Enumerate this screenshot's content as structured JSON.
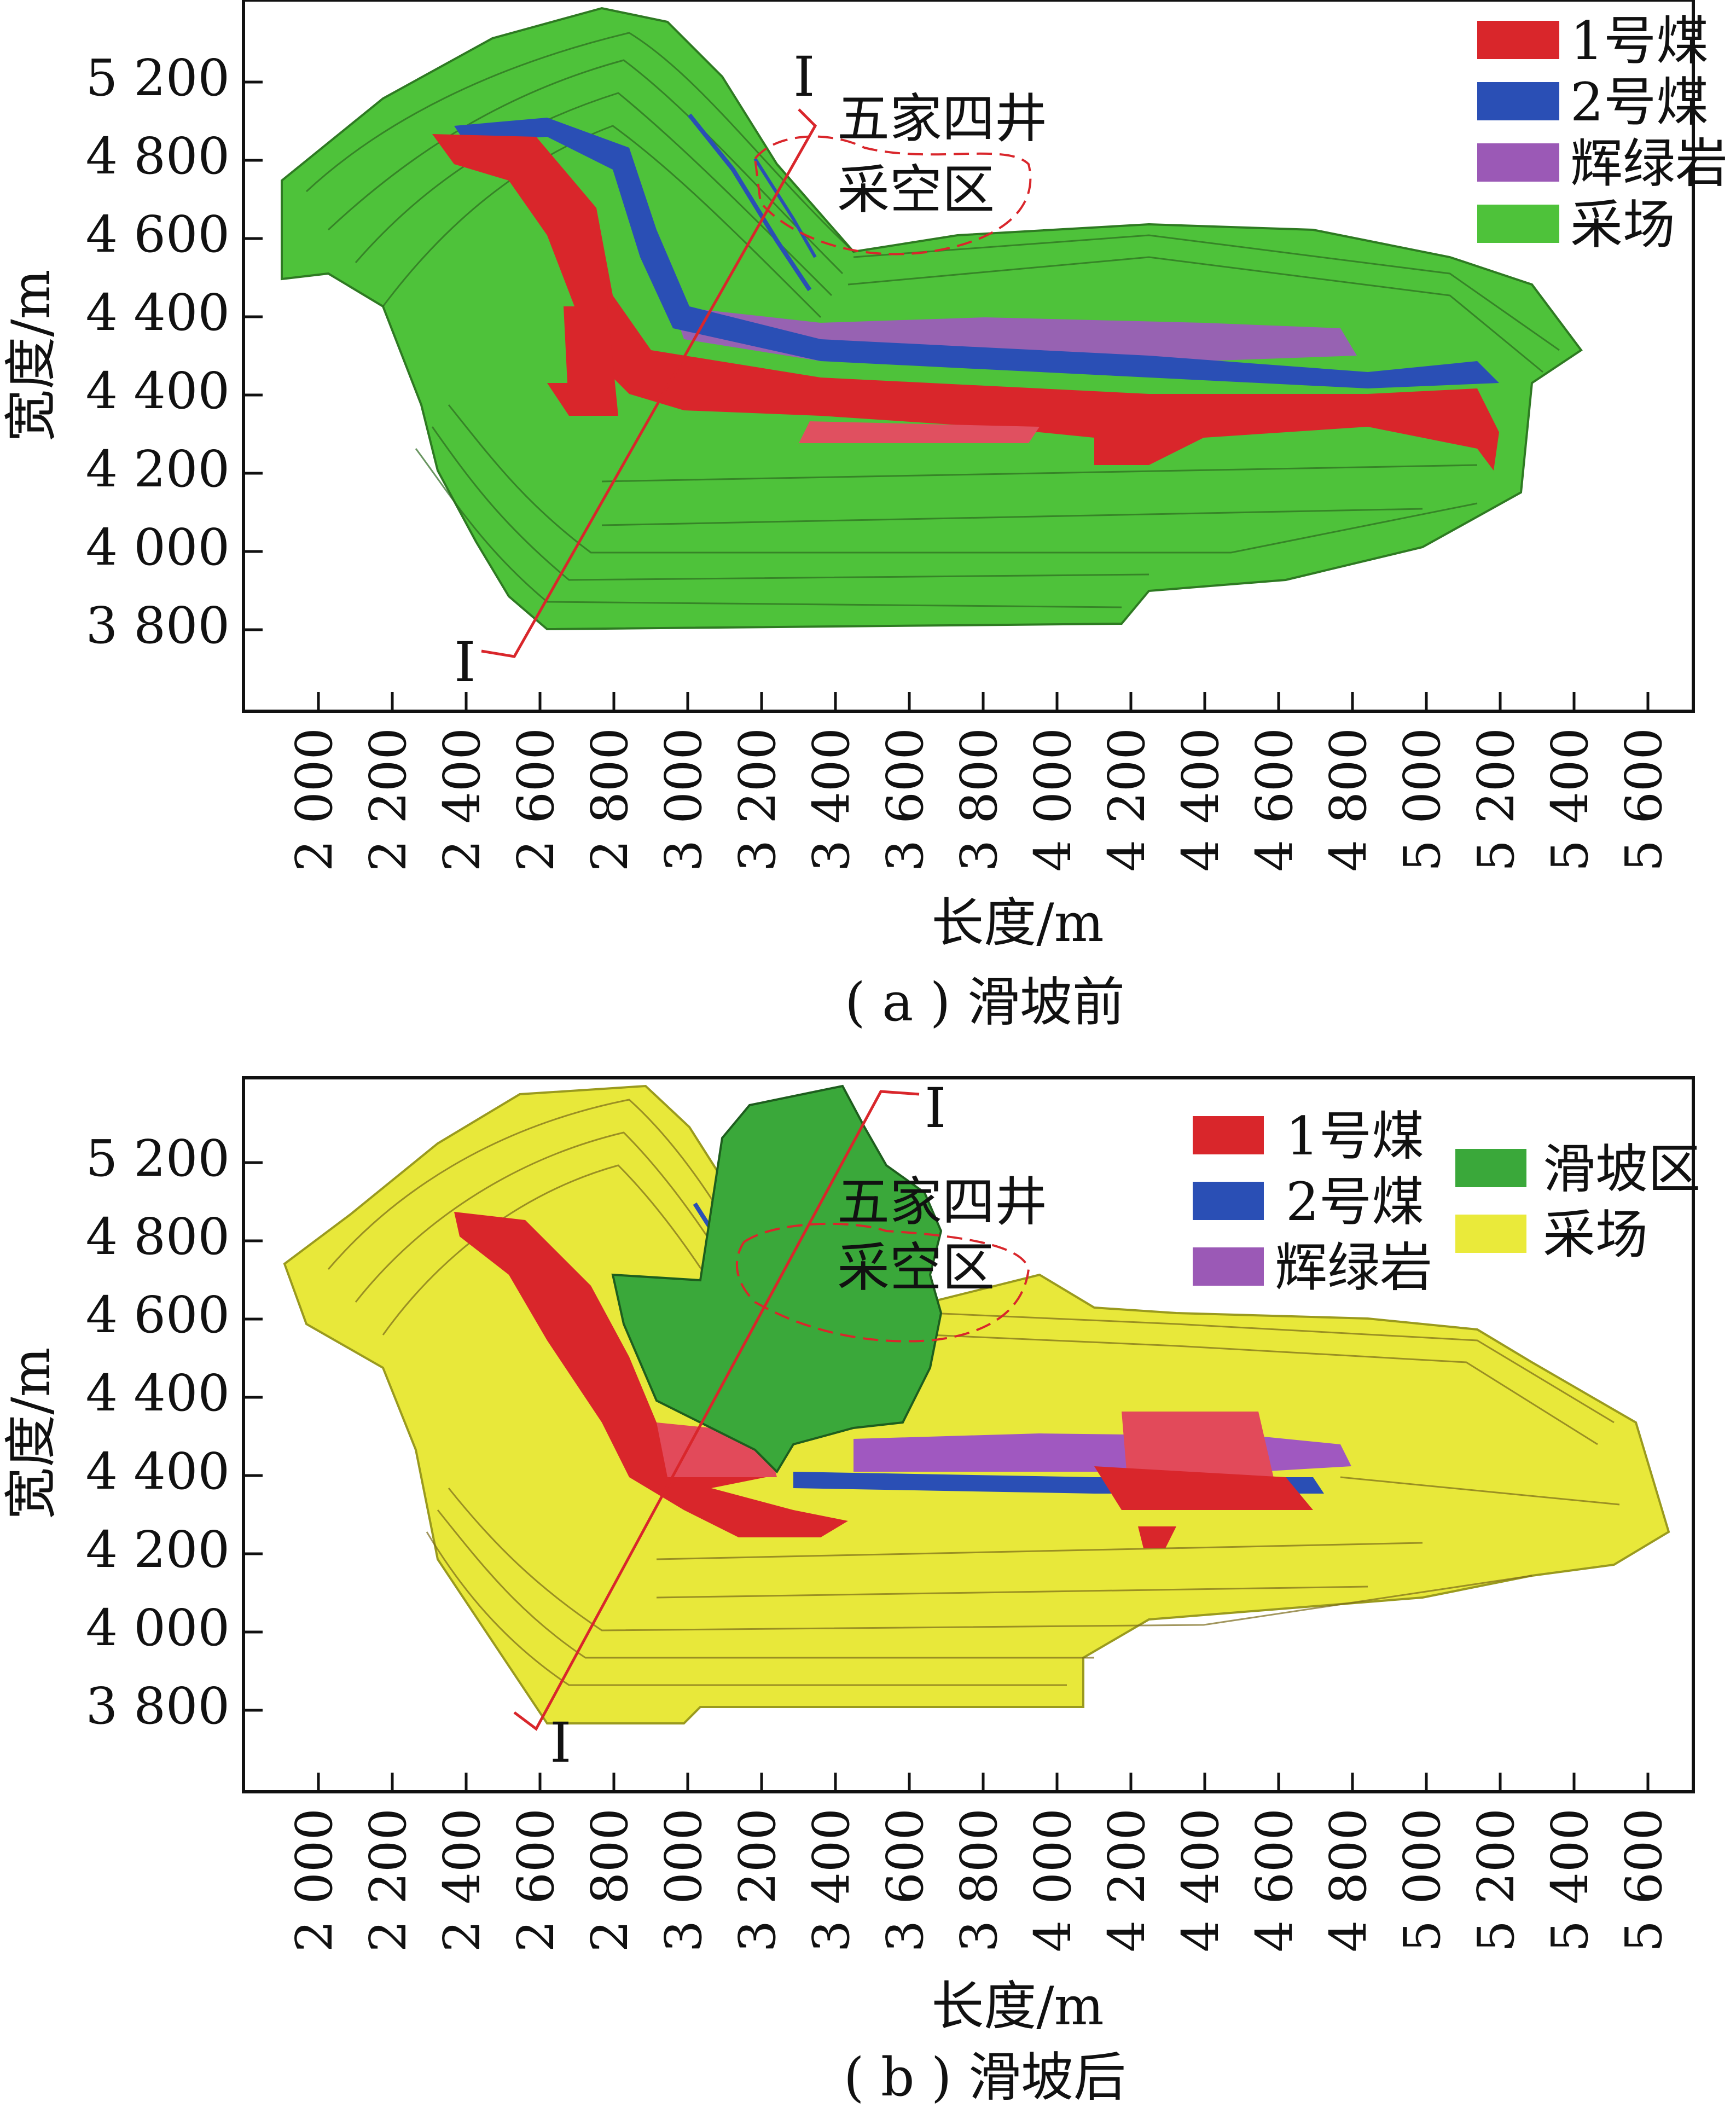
{
  "panels": [
    {
      "id": "a",
      "caption": "( a ) 滑坡前",
      "ylabel": "宽度/m",
      "xlabel": "长度/m",
      "yticks": [
        "5 200",
        "4 800",
        "4 600",
        "4 400",
        "4 400",
        "4 200",
        "4 000",
        "3 800"
      ],
      "xticks": [
        "2 000",
        "2 200",
        "2 400",
        "2 600",
        "2 800",
        "3 000",
        "3 200",
        "3 400",
        "3 600",
        "3 800",
        "4 000",
        "4 200",
        "4 400",
        "4 600",
        "4 800",
        "5 000",
        "5 200",
        "5 400",
        "5 600"
      ],
      "legend": [
        {
          "label": "1号煤",
          "color": "#d9262b"
        },
        {
          "label": "2号煤",
          "color": "#2a4fb5"
        },
        {
          "label": "辉绿岩",
          "color": "#9b59b6"
        },
        {
          "label": "采场",
          "color": "#4ec23a"
        }
      ],
      "annotation": {
        "line1": "五家四井",
        "line2": "采空区"
      },
      "section_top": "I",
      "section_bottom": "I"
    },
    {
      "id": "b",
      "caption": "( b ) 滑坡后",
      "ylabel": "宽度/m",
      "xlabel": "长度/m",
      "yticks": [
        "5 200",
        "4 800",
        "4 600",
        "4 400",
        "4 400",
        "4 200",
        "4 000",
        "3 800"
      ],
      "xticks": [
        "2 000",
        "2 200",
        "2 400",
        "2 600",
        "2 800",
        "3 000",
        "3 200",
        "3 400",
        "3 600",
        "3 800",
        "4 000",
        "4 200",
        "4 400",
        "4 600",
        "4 800",
        "5 000",
        "5 200",
        "5 400",
        "5 600"
      ],
      "legend": [
        {
          "label": "1号煤",
          "color": "#d9262b"
        },
        {
          "label": "2号煤",
          "color": "#2a4fb5"
        },
        {
          "label": "辉绿岩",
          "color": "#9b59b6"
        },
        {
          "label": "滑坡区",
          "color": "#3aa83a"
        },
        {
          "label": "采场",
          "color": "#eaea3a"
        }
      ],
      "annotation": {
        "line1": "五家四井",
        "line2": "采空区"
      },
      "section_top": "I",
      "section_bottom": "I"
    }
  ]
}
